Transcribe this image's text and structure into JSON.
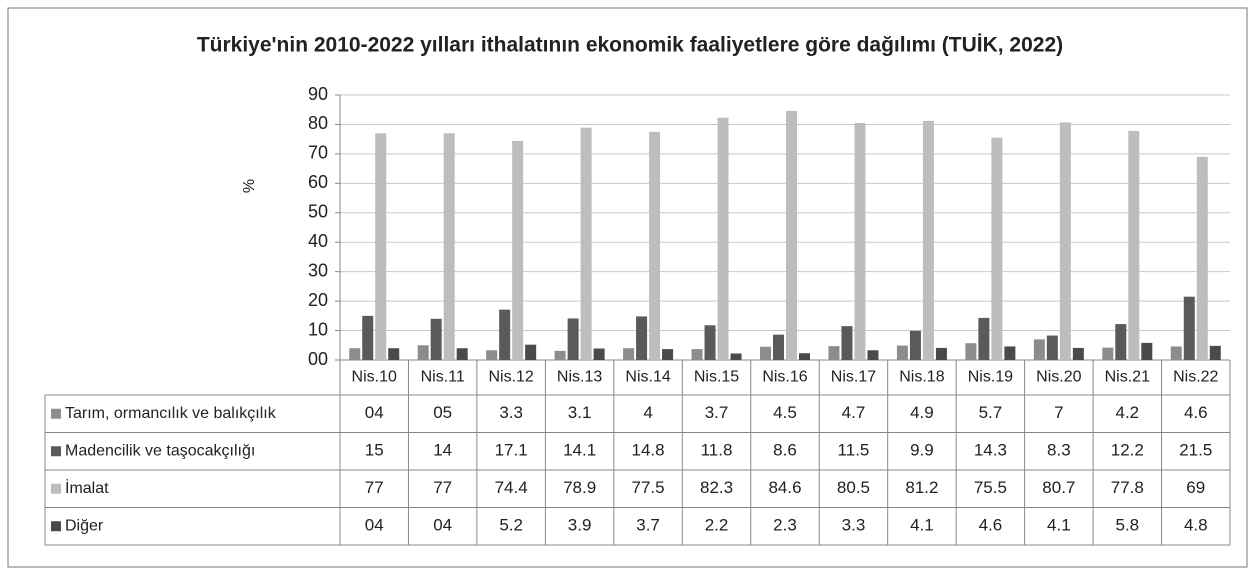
{
  "chart_data": {
    "type": "bar",
    "title": "Türkiye'nin 2010-2022 yılları ithalatının ekonomik  faaliyetlere göre dağılımı (TUİK, 2022)",
    "y_label": "%",
    "categories": [
      "Nis.10",
      "Nis.11",
      "Nis.12",
      "Nis.13",
      "Nis.14",
      "Nis.15",
      "Nis.16",
      "Nis.17",
      "Nis.18",
      "Nis.19",
      "Nis.20",
      "Nis.21",
      "Nis.22"
    ],
    "series": [
      {
        "name": "Tarım, ormancılık ve balıkçılık",
        "color": "#8c8c8c",
        "values": [
          4,
          5,
          3.3,
          3.1,
          4,
          3.7,
          4.5,
          4.7,
          4.9,
          5.7,
          7,
          4.2,
          4.6
        ],
        "value_labels": [
          "04",
          "05",
          "3.3",
          "3.1",
          "4",
          "3.7",
          "4.5",
          "4.7",
          "4.9",
          "5.7",
          "7",
          "4.2",
          "4.6"
        ]
      },
      {
        "name": "Madencilik ve taşocakçılığı",
        "color": "#5a5a5a",
        "values": [
          15,
          14,
          17.1,
          14.1,
          14.8,
          11.8,
          8.6,
          11.5,
          9.9,
          14.3,
          8.3,
          12.2,
          21.5
        ]
      },
      {
        "name": "İmalat",
        "color": "#bdbdbd",
        "values": [
          77,
          77,
          74.4,
          78.9,
          77.5,
          82.3,
          84.6,
          80.5,
          81.2,
          75.5,
          80.7,
          77.8,
          69
        ]
      },
      {
        "name": "Diğer",
        "color": "#4a4a4a",
        "values": [
          4,
          4,
          5.2,
          3.9,
          3.7,
          2.2,
          2.3,
          3.3,
          4.1,
          4.6,
          4.1,
          5.8,
          4.8
        ],
        "value_labels": [
          "04",
          "04",
          "5.2",
          "3.9",
          "3.7",
          "2.2",
          "2.3",
          "3.3",
          "4.1",
          "4.6",
          "4.1",
          "5.8",
          "4.8"
        ]
      }
    ],
    "ylim": [
      0,
      90
    ],
    "yticks": [
      {
        "value": 0,
        "label": "00"
      },
      10,
      20,
      30,
      40,
      50,
      60,
      70,
      80,
      90
    ],
    "grid": true
  }
}
